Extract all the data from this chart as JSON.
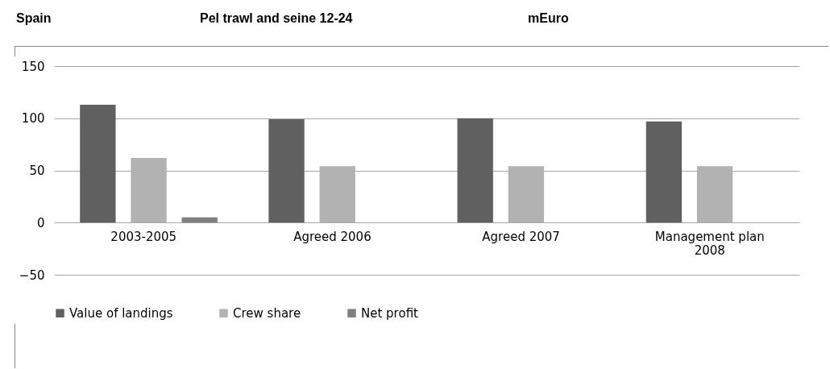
{
  "chart_data": {
    "type": "bar",
    "title": "Pel trawl and seine 12-24",
    "annotations": [
      "Spain"
    ],
    "ylabel": "mEuro",
    "categories": [
      "2003-2005",
      "Agreed 2006",
      "Agreed 2007",
      "Management plan 2008"
    ],
    "series": [
      {
        "name": "Value of landings",
        "color": "#606060",
        "values": [
          113,
          99,
          100,
          97
        ]
      },
      {
        "name": "Crew share",
        "color": "#b2b2b2",
        "values": [
          62,
          54,
          54,
          54
        ]
      },
      {
        "name": "Net profit",
        "color": "#808080",
        "values": [
          5,
          0,
          0,
          0
        ]
      }
    ],
    "ylim": [
      -50,
      150
    ],
    "yticks": [
      -50,
      0,
      50,
      100,
      150
    ],
    "grid": "y",
    "legend": "bottom"
  }
}
